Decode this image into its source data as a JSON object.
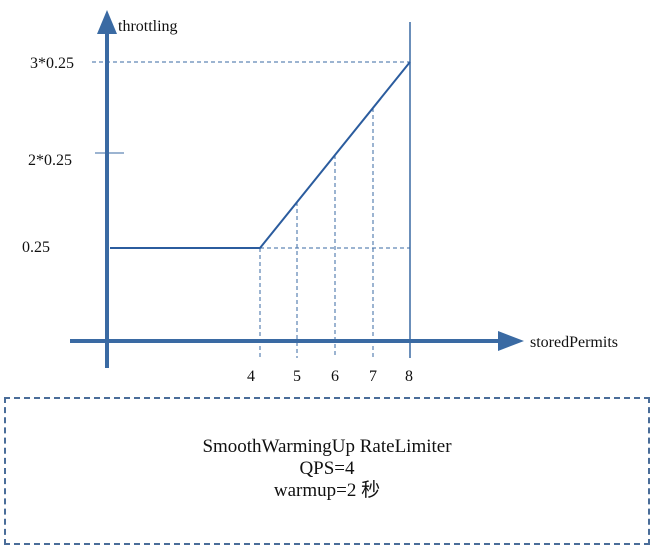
{
  "chart_data": {
    "type": "line",
    "xlabel": "storedPermits",
    "ylabel": "throttling",
    "x_ticks": [
      "4",
      "5",
      "6",
      "7",
      "8"
    ],
    "y_ticks": [
      {
        "label": "0.25",
        "value": 0.25
      },
      {
        "label": "2*0.25",
        "value": 0.5
      },
      {
        "label": "3*0.25",
        "value": 0.75
      }
    ],
    "series": [
      {
        "x": [
          0,
          4,
          8
        ],
        "y": [
          0.25,
          0.25,
          0.75
        ]
      }
    ],
    "xlim": [
      0,
      8
    ],
    "grid": "dashed guide lines at x=4..8 and y=0.25, 0.75",
    "colors": {
      "axis": "#3a6aa3",
      "line": "#2b5c9e",
      "guide": "#3a6aa3"
    }
  },
  "caption": {
    "line1": "SmoothWarmingUp RateLimiter",
    "line2": "QPS=4",
    "line3": "warmup=2 秒"
  }
}
